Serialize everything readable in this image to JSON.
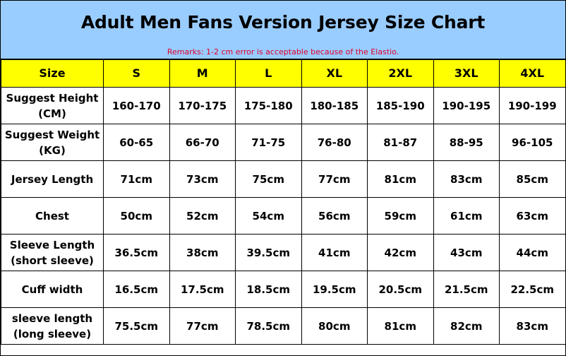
{
  "title": "Adult Men Fans Version Jersey Size Chart",
  "remarks": "Remarks: 1-2 cm error is acceptable because of the Elastio.",
  "colors": {
    "header_bg": "#99ccff",
    "size_row_bg": "#ffff00",
    "remarks_text": "#e0002a"
  },
  "table": {
    "header": [
      "Size",
      "S",
      "M",
      "L",
      "XL",
      "2XL",
      "3XL",
      "4XL"
    ],
    "rows": [
      {
        "label_lines": [
          "Suggest Height",
          "(CM)"
        ],
        "values": [
          "160-170",
          "170-175",
          "175-180",
          "180-185",
          "185-190",
          "190-195",
          "190-199"
        ]
      },
      {
        "label_lines": [
          "Suggest Weight",
          "(KG)"
        ],
        "values": [
          "60-65",
          "66-70",
          "71-75",
          "76-80",
          "81-87",
          "88-95",
          "96-105"
        ]
      },
      {
        "label_lines": [
          "Jersey Length"
        ],
        "values": [
          "71cm",
          "73cm",
          "75cm",
          "77cm",
          "81cm",
          "83cm",
          "85cm"
        ]
      },
      {
        "label_lines": [
          "Chest"
        ],
        "values": [
          "50cm",
          "52cm",
          "54cm",
          "56cm",
          "59cm",
          "61cm",
          "63cm"
        ]
      },
      {
        "label_lines": [
          "Sleeve Length",
          "(short sleeve)"
        ],
        "values": [
          "36.5cm",
          "38cm",
          "39.5cm",
          "41cm",
          "42cm",
          "43cm",
          "44cm"
        ]
      },
      {
        "label_lines": [
          "Cuff width"
        ],
        "values": [
          "16.5cm",
          "17.5cm",
          "18.5cm",
          "19.5cm",
          "20.5cm",
          "21.5cm",
          "22.5cm"
        ]
      },
      {
        "label_lines": [
          "sleeve length",
          "(long sleeve)"
        ],
        "values": [
          "75.5cm",
          "77cm",
          "78.5cm",
          "80cm",
          "81cm",
          "82cm",
          "83cm"
        ]
      }
    ]
  }
}
